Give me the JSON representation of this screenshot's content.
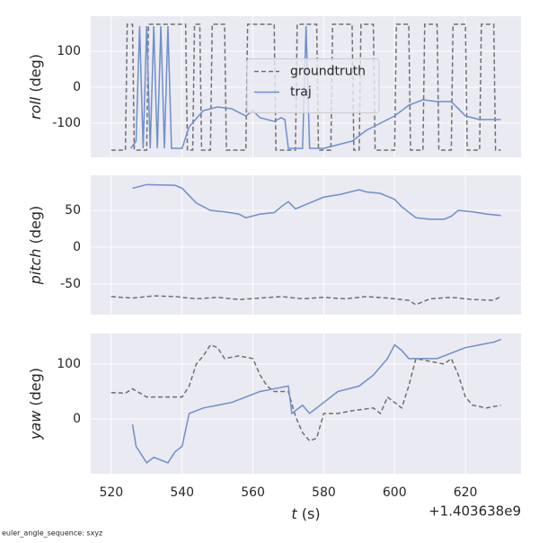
{
  "chart_data": [
    {
      "type": "line",
      "ylabel": "roll (deg)",
      "xlim": [
        514.2,
        635.7
      ],
      "xticks": [
        520,
        540,
        560,
        580,
        600,
        620
      ],
      "ylim": [
        -195,
        197.5
      ],
      "yticks": [
        -100,
        0,
        100
      ],
      "grid": true,
      "legend": "center",
      "series": [
        {
          "name": "groundtruth",
          "color": "#707070",
          "linestyle": "dashed",
          "x": [
            520,
            524,
            524.5,
            526,
            526.5,
            530,
            530.5,
            541,
            541.5,
            543,
            543.5,
            545,
            545.5,
            548,
            548.5,
            552,
            552.5,
            558,
            558.5,
            566,
            566.5,
            572,
            572.5,
            578,
            578.5,
            582,
            582.5,
            588,
            588.5,
            590,
            590.5,
            594,
            594.5,
            600,
            600.5,
            604,
            604.5,
            608,
            608.5,
            612,
            612.5,
            616,
            616.5,
            620,
            620.5,
            624,
            624.5,
            628,
            628.5,
            630
          ],
          "values": [
            -175,
            -175,
            175,
            175,
            -175,
            -175,
            175,
            175,
            -175,
            -175,
            175,
            175,
            -175,
            -175,
            175,
            175,
            -175,
            -175,
            175,
            175,
            -175,
            -175,
            175,
            175,
            -175,
            -175,
            175,
            175,
            -175,
            -175,
            175,
            175,
            -175,
            -175,
            175,
            175,
            -175,
            -175,
            175,
            175,
            -175,
            -175,
            175,
            175,
            -175,
            -175,
            175,
            175,
            -175,
            -175
          ]
        },
        {
          "name": "traj",
          "color": "#6f8fc9",
          "linestyle": "solid",
          "x": [
            525.5,
            527,
            528,
            529,
            530,
            531,
            532,
            533,
            534,
            535,
            536,
            537,
            540,
            542,
            546,
            550,
            554,
            558,
            560,
            562,
            566,
            568,
            569,
            570,
            574,
            575,
            576,
            580,
            584,
            588,
            592,
            596,
            600,
            604,
            608,
            612,
            616,
            620,
            624,
            630
          ],
          "values": [
            -170,
            -150,
            170,
            -170,
            170,
            -170,
            170,
            -170,
            170,
            -170,
            170,
            -170,
            -170,
            -110,
            -65,
            -55,
            -60,
            -80,
            -65,
            -85,
            -95,
            -85,
            -90,
            -170,
            -170,
            170,
            -170,
            -170,
            -160,
            -150,
            -120,
            -100,
            -80,
            -50,
            -35,
            -40,
            -40,
            -80,
            -90,
            -90
          ]
        }
      ]
    },
    {
      "type": "line",
      "ylabel": "pitch (deg)",
      "xlim": [
        514.2,
        635.7
      ],
      "xticks": [
        520,
        540,
        560,
        580,
        600,
        620
      ],
      "ylim": [
        -91.5,
        97.6
      ],
      "yticks": [
        -50,
        0,
        50
      ],
      "grid": true,
      "series": [
        {
          "color": "#707070",
          "linestyle": "dashed",
          "x": [
            520,
            526,
            532,
            538,
            544,
            550,
            556,
            562,
            568,
            574,
            580,
            586,
            592,
            598,
            604,
            606,
            610,
            616,
            622,
            628,
            630
          ],
          "values": [
            -67,
            -69,
            -66,
            -67,
            -70,
            -68,
            -71,
            -69,
            -67,
            -70,
            -68,
            -70,
            -67,
            -69,
            -72,
            -78,
            -70,
            -68,
            -71,
            -72,
            -67
          ]
        },
        {
          "color": "#6f8fc9",
          "linestyle": "solid",
          "x": [
            526,
            530,
            538,
            540,
            544,
            548,
            552,
            556,
            558,
            562,
            566,
            568,
            570,
            572,
            576,
            580,
            585,
            590,
            592,
            596,
            600,
            602,
            606,
            610,
            614,
            616,
            618,
            622,
            626,
            630
          ],
          "values": [
            80,
            85,
            84,
            80,
            60,
            50,
            48,
            45,
            40,
            45,
            47,
            55,
            62,
            52,
            60,
            68,
            72,
            78,
            75,
            73,
            65,
            55,
            40,
            38,
            38,
            42,
            50,
            48,
            45,
            43
          ]
        }
      ]
    },
    {
      "type": "line",
      "ylabel": "yaw (deg)",
      "xlabel": "t (s)",
      "offset": "+1.403638e9",
      "xlim": [
        514.2,
        635.7
      ],
      "xticks": [
        520,
        540,
        560,
        580,
        600,
        620
      ],
      "ylim": [
        -100,
        155.7
      ],
      "yticks": [
        0,
        100
      ],
      "grid": true,
      "series": [
        {
          "color": "#707070",
          "linestyle": "dashed",
          "x": [
            520,
            524,
            526,
            530,
            540,
            542,
            544,
            546,
            548,
            550,
            552,
            556,
            560,
            562,
            564,
            566,
            570,
            572,
            574,
            576,
            578,
            580,
            584,
            588,
            594,
            596,
            598,
            600,
            602,
            604,
            606,
            610,
            614,
            616,
            618,
            620,
            622,
            626,
            630
          ],
          "values": [
            48,
            47,
            55,
            40,
            40,
            60,
            100,
            115,
            135,
            130,
            110,
            115,
            110,
            80,
            60,
            50,
            50,
            5,
            -25,
            -40,
            -35,
            10,
            10,
            15,
            20,
            10,
            40,
            30,
            20,
            60,
            110,
            105,
            100,
            110,
            80,
            40,
            25,
            20,
            25
          ]
        },
        {
          "color": "#6f8fc9",
          "linestyle": "solid",
          "x": [
            526,
            527,
            528,
            530,
            532,
            534,
            536,
            538,
            540,
            542,
            546,
            550,
            554,
            558,
            562,
            566,
            570,
            571,
            574,
            576,
            580,
            584,
            590,
            594,
            598,
            600,
            602,
            604,
            608,
            612,
            616,
            620,
            624,
            628,
            630
          ],
          "values": [
            -10,
            -50,
            -60,
            -80,
            -70,
            -75,
            -80,
            -60,
            -50,
            10,
            20,
            25,
            30,
            40,
            50,
            55,
            60,
            10,
            25,
            10,
            30,
            50,
            60,
            80,
            110,
            135,
            125,
            110,
            110,
            110,
            120,
            130,
            135,
            140,
            145
          ]
        }
      ]
    }
  ],
  "footer": "euler_angle_sequence: sxyz"
}
